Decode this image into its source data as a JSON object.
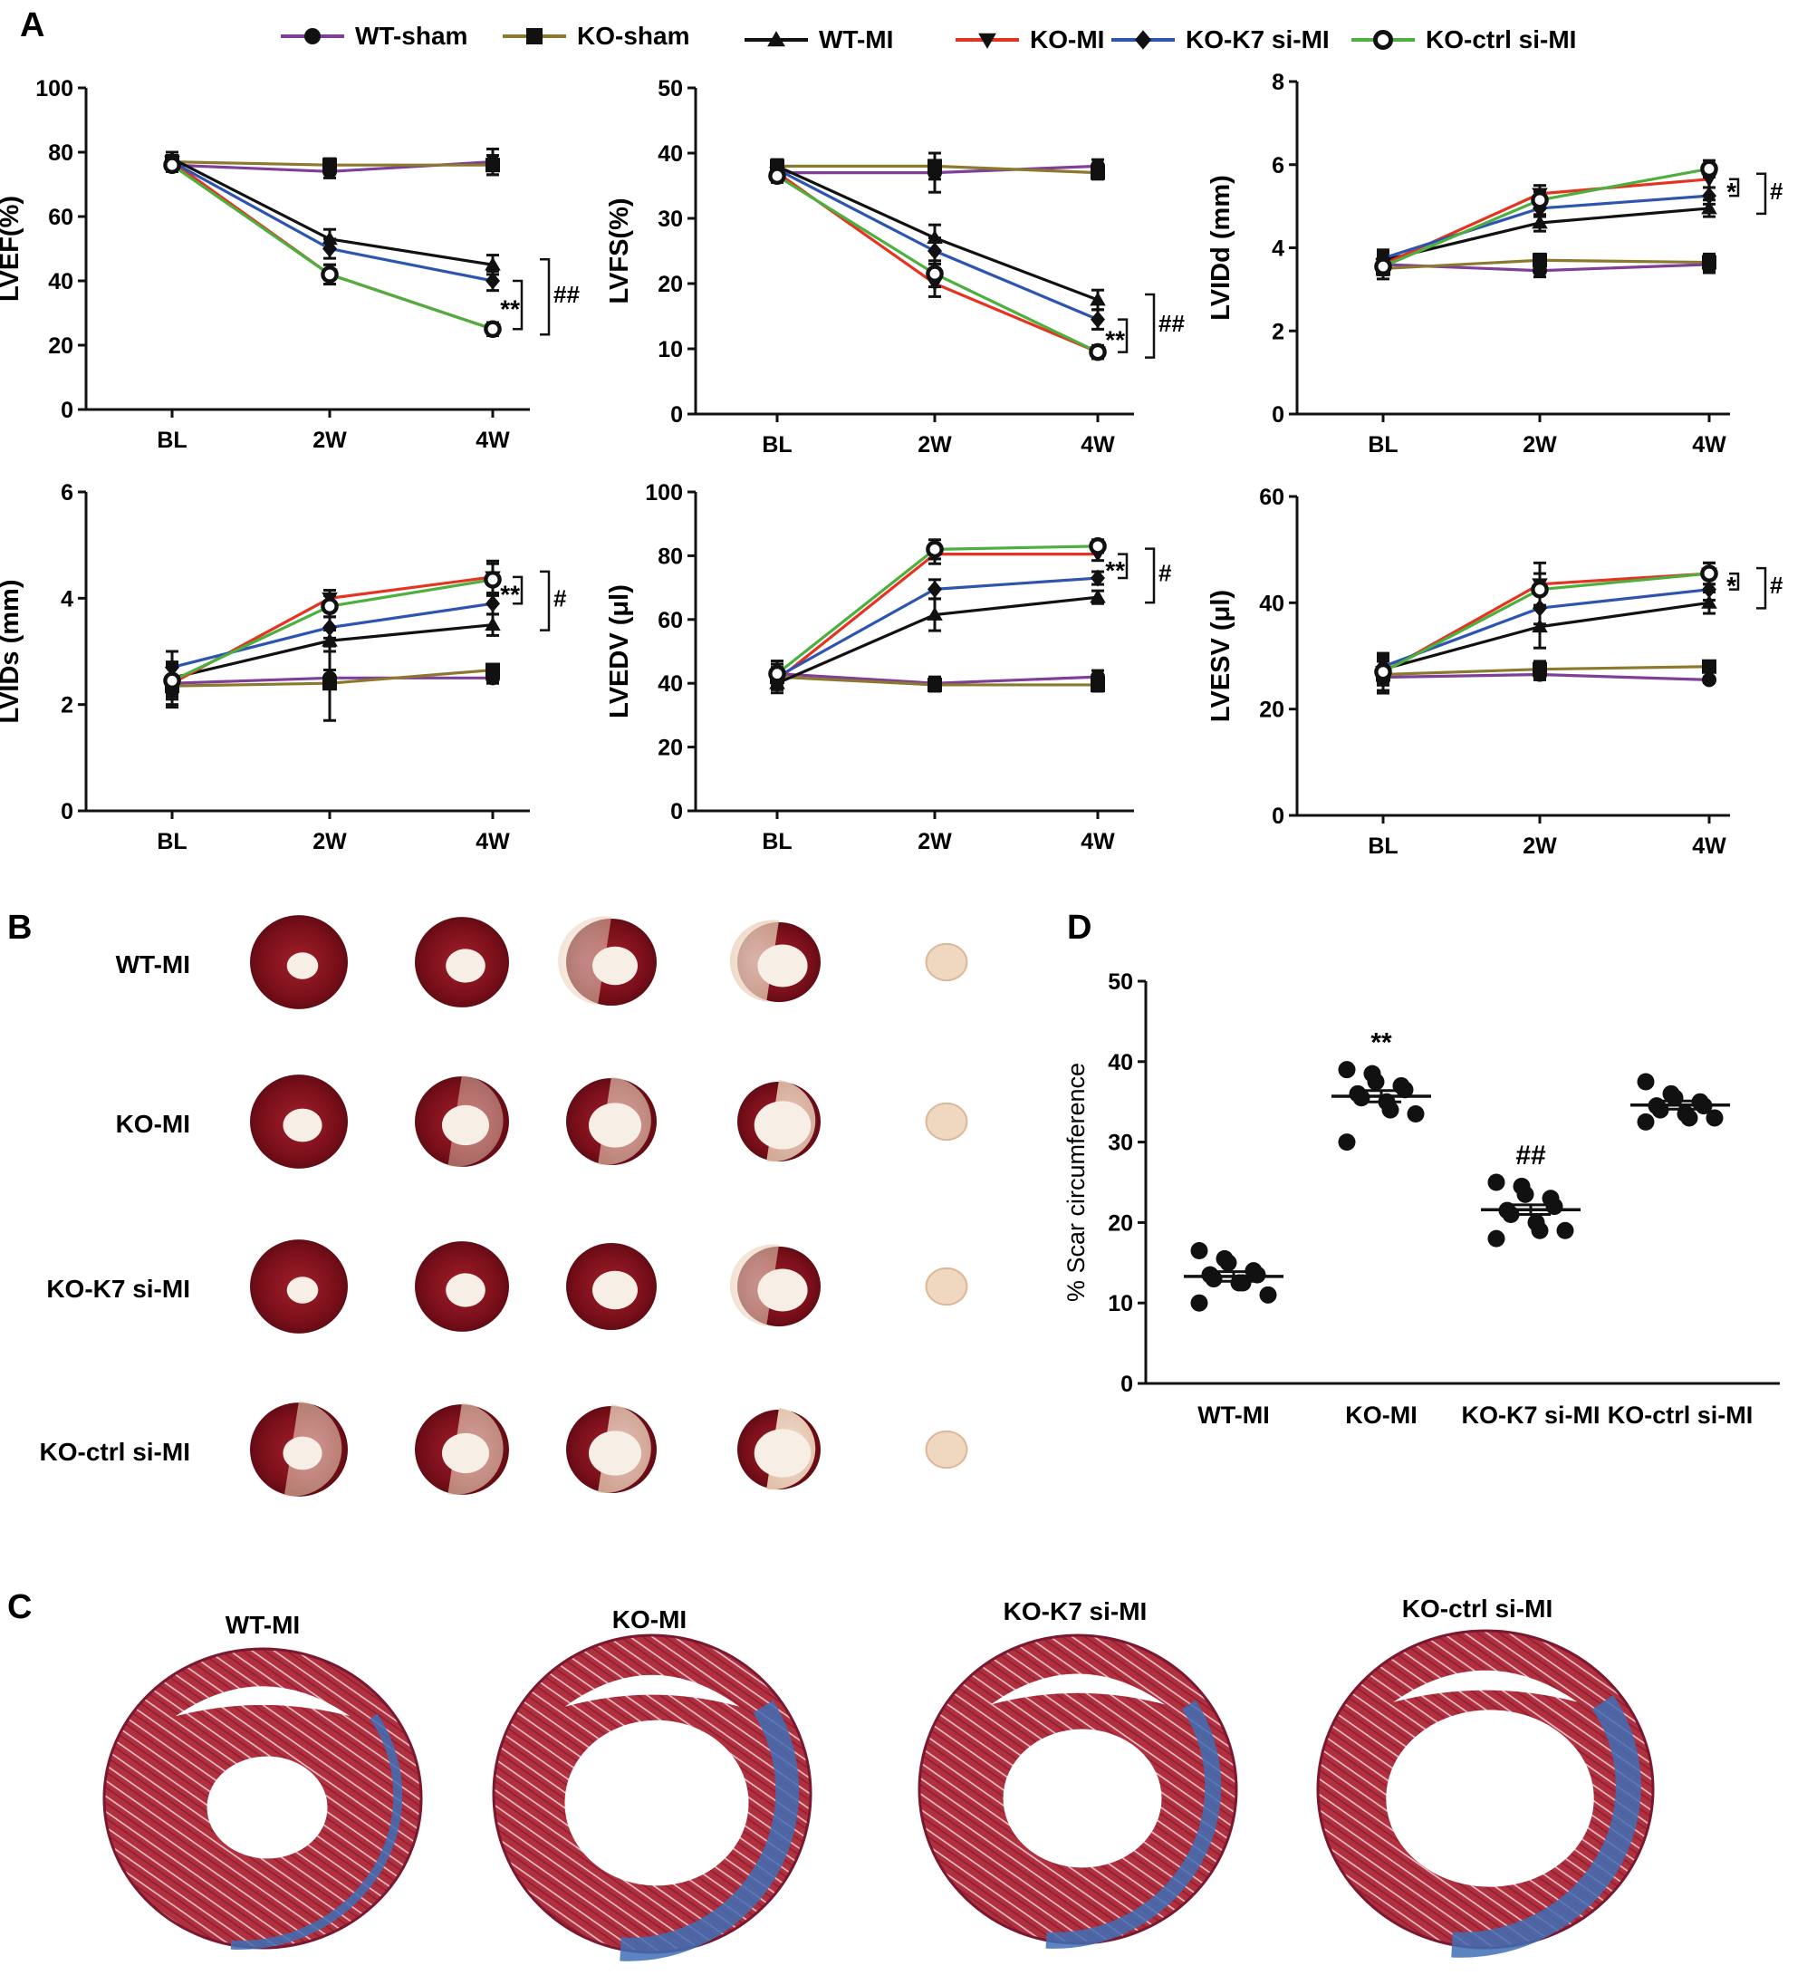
{
  "colors": {
    "WT-sham": "#7f3f98",
    "KO-sham": "#8b7a2e",
    "WT-MI": "#111111",
    "KO-MI": "#e53322",
    "KO-K7 si-MI": "#2d55b0",
    "KO-ctrl si-MI": "#4caf3e"
  },
  "panels": {
    "A": "A",
    "B": "B",
    "C": "C",
    "D": "D"
  },
  "legend": [
    {
      "name": "WT-sham",
      "marker": "circle"
    },
    {
      "name": "KO-sham",
      "marker": "square"
    },
    {
      "name": "WT-MI",
      "marker": "triangle-up"
    },
    {
      "name": "KO-MI",
      "marker": "triangle-down"
    },
    {
      "name": "KO-K7 si-MI",
      "marker": "diamond"
    },
    {
      "name": "KO-ctrl si-MI",
      "marker": "open-circle"
    }
  ],
  "chart_data": [
    {
      "type": "line",
      "title": "",
      "xlabel": "",
      "ylabel": "LVEF(%)",
      "categories": [
        "BL",
        "2W",
        "4W"
      ],
      "ylim": [
        0,
        100
      ],
      "yticks": [
        0,
        20,
        40,
        60,
        80,
        100
      ],
      "series": [
        {
          "name": "WT-sham",
          "values": [
            76,
            74,
            77
          ],
          "err": [
            2,
            2,
            4
          ]
        },
        {
          "name": "KO-sham",
          "values": [
            77,
            76,
            76
          ],
          "err": [
            2,
            2,
            3
          ]
        },
        {
          "name": "WT-MI",
          "values": [
            78,
            53,
            45
          ],
          "err": [
            2,
            3,
            3
          ]
        },
        {
          "name": "KO-MI",
          "values": [
            77,
            42,
            25
          ],
          "err": [
            2,
            3,
            2
          ]
        },
        {
          "name": "KO-K7 si-MI",
          "values": [
            77,
            50,
            40
          ],
          "err": [
            2,
            3,
            3
          ]
        },
        {
          "name": "KO-ctrl si-MI",
          "values": [
            76,
            42,
            25
          ],
          "err": [
            2,
            3,
            2
          ]
        }
      ],
      "annotations": [
        {
          "text": "**"
        },
        {
          "text": "##"
        }
      ]
    },
    {
      "type": "line",
      "title": "",
      "xlabel": "",
      "ylabel": "LVFS(%)",
      "categories": [
        "BL",
        "2W",
        "4W"
      ],
      "ylim": [
        0,
        50
      ],
      "yticks": [
        0,
        10,
        20,
        30,
        40,
        50
      ],
      "series": [
        {
          "name": "WT-sham",
          "values": [
            37,
            37,
            38
          ],
          "err": [
            1,
            3,
            1
          ]
        },
        {
          "name": "KO-sham",
          "values": [
            38,
            38,
            37
          ],
          "err": [
            1,
            2,
            1
          ]
        },
        {
          "name": "WT-MI",
          "values": [
            38,
            27,
            17.5
          ],
          "err": [
            1,
            2,
            1.5
          ]
        },
        {
          "name": "KO-MI",
          "values": [
            37,
            20,
            9.5
          ],
          "err": [
            1,
            2,
            1
          ]
        },
        {
          "name": "KO-K7 si-MI",
          "values": [
            37.5,
            25,
            14.5
          ],
          "err": [
            1,
            2,
            1.5
          ]
        },
        {
          "name": "KO-ctrl si-MI",
          "values": [
            36.5,
            21.5,
            9.5
          ],
          "err": [
            1,
            2,
            1
          ]
        }
      ],
      "annotations": [
        {
          "text": "**"
        },
        {
          "text": "##"
        }
      ]
    },
    {
      "type": "line",
      "title": "",
      "xlabel": "",
      "ylabel": "LVIDd (mm)",
      "categories": [
        "BL",
        "2W",
        "4W"
      ],
      "ylim": [
        0,
        8
      ],
      "yticks": [
        0,
        2,
        4,
        6,
        8
      ],
      "series": [
        {
          "name": "WT-sham",
          "values": [
            3.6,
            3.45,
            3.6
          ],
          "err": [
            0.25,
            0.15,
            0.2
          ]
        },
        {
          "name": "KO-sham",
          "values": [
            3.5,
            3.7,
            3.65
          ],
          "err": [
            0.25,
            0.15,
            0.2
          ]
        },
        {
          "name": "WT-MI",
          "values": [
            3.7,
            4.6,
            4.95
          ],
          "err": [
            0.2,
            0.2,
            0.2
          ]
        },
        {
          "name": "KO-MI",
          "values": [
            3.6,
            5.3,
            5.65
          ],
          "err": [
            0.2,
            0.2,
            0.2
          ]
        },
        {
          "name": "KO-K7 si-MI",
          "values": [
            3.75,
            4.95,
            5.25
          ],
          "err": [
            0.2,
            0.2,
            0.2
          ]
        },
        {
          "name": "KO-ctrl si-MI",
          "values": [
            3.55,
            5.15,
            5.9
          ],
          "err": [
            0.2,
            0.2,
            0.2
          ]
        }
      ],
      "annotations": [
        {
          "text": "*"
        },
        {
          "text": "#"
        }
      ]
    },
    {
      "type": "line",
      "title": "",
      "xlabel": "",
      "ylabel": "LVIDs (mm)",
      "categories": [
        "BL",
        "2W",
        "4W"
      ],
      "ylim": [
        0,
        6
      ],
      "yticks": [
        0,
        2,
        4,
        6
      ],
      "series": [
        {
          "name": "WT-sham",
          "values": [
            2.4,
            2.5,
            2.5
          ],
          "err": [
            0.4,
            0.15,
            0.1
          ]
        },
        {
          "name": "KO-sham",
          "values": [
            2.35,
            2.4,
            2.65
          ],
          "err": [
            0.4,
            0.7,
            0.1
          ]
        },
        {
          "name": "WT-MI",
          "values": [
            2.5,
            3.2,
            3.5
          ],
          "err": [
            0.3,
            0.2,
            0.2
          ]
        },
        {
          "name": "KO-MI",
          "values": [
            2.4,
            4.0,
            4.4
          ],
          "err": [
            0.3,
            0.15,
            0.3
          ]
        },
        {
          "name": "KO-K7 si-MI",
          "values": [
            2.7,
            3.45,
            3.9
          ],
          "err": [
            0.3,
            0.2,
            0.2
          ]
        },
        {
          "name": "KO-ctrl si-MI",
          "values": [
            2.45,
            3.85,
            4.35
          ],
          "err": [
            0.3,
            0.2,
            0.3
          ]
        }
      ],
      "annotations": [
        {
          "text": "**"
        },
        {
          "text": "#"
        }
      ]
    },
    {
      "type": "line",
      "title": "",
      "xlabel": "",
      "ylabel": "LVEDV (μl)",
      "categories": [
        "BL",
        "2W",
        "4W"
      ],
      "ylim": [
        0,
        100
      ],
      "yticks": [
        0,
        20,
        40,
        60,
        80,
        100
      ],
      "series": [
        {
          "name": "WT-sham",
          "values": [
            43,
            40,
            42
          ],
          "err": [
            4,
            2,
            2
          ]
        },
        {
          "name": "KO-sham",
          "values": [
            42,
            39.5,
            39.5
          ],
          "err": [
            4,
            2,
            2
          ]
        },
        {
          "name": "WT-MI",
          "values": [
            40,
            61.5,
            67
          ],
          "err": [
            3,
            5,
            2
          ]
        },
        {
          "name": "KO-MI",
          "values": [
            41,
            80.5,
            80.5
          ],
          "err": [
            3,
            3,
            2
          ]
        },
        {
          "name": "KO-K7 si-MI",
          "values": [
            42,
            69.5,
            73
          ],
          "err": [
            3,
            3,
            2
          ]
        },
        {
          "name": "KO-ctrl si-MI",
          "values": [
            43,
            82,
            83
          ],
          "err": [
            3,
            3,
            2
          ]
        }
      ],
      "annotations": [
        {
          "text": "**"
        },
        {
          "text": "#"
        }
      ]
    },
    {
      "type": "line",
      "title": "",
      "xlabel": "",
      "ylabel": "LVESV (μl)",
      "categories": [
        "BL",
        "2W",
        "4W"
      ],
      "ylim": [
        0,
        60
      ],
      "yticks": [
        0,
        20,
        40,
        60
      ],
      "series": [
        {
          "name": "WT-sham",
          "values": [
            26,
            26.5,
            25.5
          ],
          "err": [
            3,
            1,
            0.5
          ]
        },
        {
          "name": "KO-sham",
          "values": [
            26.5,
            27.5,
            28
          ],
          "err": [
            3,
            1.5,
            0.5
          ]
        },
        {
          "name": "WT-MI",
          "values": [
            27.5,
            35.5,
            40
          ],
          "err": [
            3,
            4,
            2
          ]
        },
        {
          "name": "KO-MI",
          "values": [
            27,
            43.5,
            45.5
          ],
          "err": [
            2,
            4,
            2
          ]
        },
        {
          "name": "KO-K7 si-MI",
          "values": [
            28,
            39,
            42.5
          ],
          "err": [
            2,
            3,
            2
          ]
        },
        {
          "name": "KO-ctrl si-MI",
          "values": [
            27,
            42.5,
            45.5
          ],
          "err": [
            2,
            3,
            2
          ]
        }
      ],
      "annotations": [
        {
          "text": "*"
        },
        {
          "text": "#"
        }
      ]
    },
    {
      "type": "scatter",
      "title": "",
      "xlabel": "",
      "ylabel": "% Scar circumference",
      "categories": [
        "WT-MI",
        "KO-MI",
        "KO-K7 si-MI",
        "KO-ctrl si-MI"
      ],
      "ylim": [
        0,
        50
      ],
      "yticks": [
        0,
        10,
        20,
        30,
        40,
        50
      ],
      "groups": [
        {
          "name": "WT-MI",
          "points": [
            16.5,
            15.5,
            15,
            14,
            13.5,
            13.5,
            13,
            12.5,
            12.5,
            11,
            10
          ],
          "mean": 13.3,
          "sem": 0.6
        },
        {
          "name": "KO-MI",
          "points": [
            39,
            38.5,
            37.5,
            37,
            36.5,
            36,
            35.5,
            35,
            34,
            33.5,
            30
          ],
          "mean": 35.7,
          "sem": 0.7,
          "annotation": "**"
        },
        {
          "name": "KO-K7 si-MI",
          "points": [
            25,
            24.5,
            23.5,
            23,
            22,
            21.5,
            21,
            20,
            19,
            19,
            18
          ],
          "mean": 21.6,
          "sem": 0.6,
          "annotation": "##"
        },
        {
          "name": "KO-ctrl si-MI",
          "points": [
            37.5,
            36,
            35.5,
            35,
            34.5,
            34.5,
            34,
            33.5,
            33,
            33,
            32.5
          ],
          "mean": 34.6,
          "sem": 0.5
        }
      ]
    }
  ],
  "panel_b": {
    "rows": [
      "WT-MI",
      "KO-MI",
      "KO-K7 si-MI",
      "KO-ctrl si-MI"
    ]
  },
  "panel_c": {
    "labels": [
      "WT-MI",
      "KO-MI",
      "KO-K7 si-MI",
      "KO-ctrl si-MI"
    ]
  }
}
